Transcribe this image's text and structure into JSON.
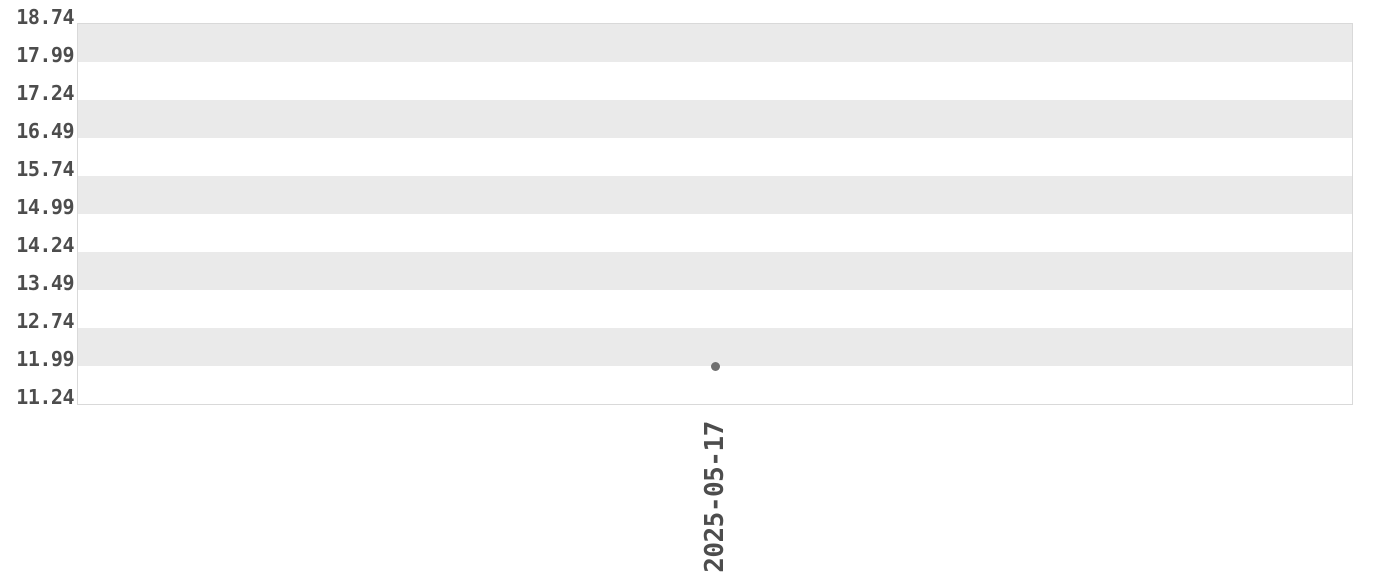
{
  "chart_data": {
    "type": "scatter",
    "title": "",
    "xlabel": "",
    "ylabel": "",
    "x": [
      "2025-05-17"
    ],
    "series": [
      {
        "values": [
          11.99
        ]
      }
    ],
    "y_ticks": [
      "18.74",
      "17.99",
      "17.24",
      "16.49",
      "15.74",
      "14.99",
      "14.24",
      "13.49",
      "12.74",
      "11.99",
      "11.24"
    ],
    "ylim": [
      11.24,
      18.74
    ],
    "grid": "horizontal-alternating-bands",
    "legend": "none",
    "colors": {
      "band": "#eaeaea",
      "band_alt": "#ffffff",
      "plot_border": "#d9d9d9",
      "tick_text": "#4d4d4d",
      "marker": "#6f6f6f",
      "background": "#ffffff"
    }
  }
}
